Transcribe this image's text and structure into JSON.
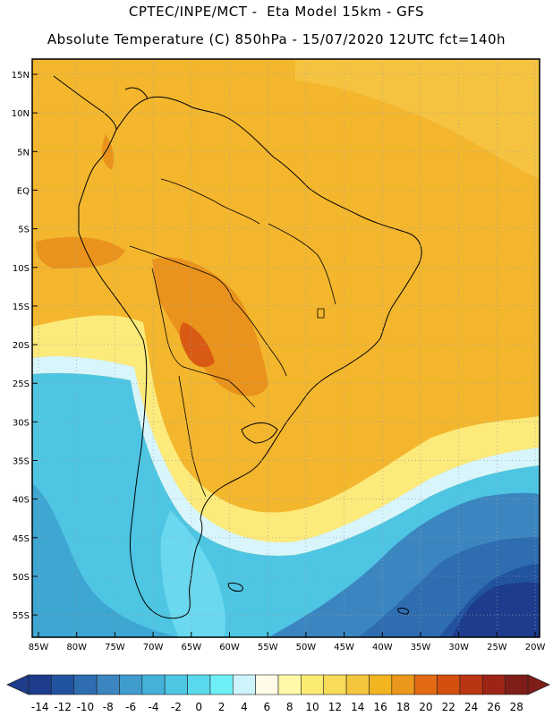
{
  "header": {
    "line1": "CPTEC/INPE/MCT -  Eta Model 15km - GFS",
    "line2": "Absolute Temperature (C) 850hPa - 15/07/2020 12UTC fct=140h"
  },
  "axes": {
    "lat_labels": [
      "15N",
      "10N",
      "5N",
      "EQ",
      "5S",
      "10S",
      "15S",
      "20S",
      "25S",
      "30S",
      "35S",
      "40S",
      "45S",
      "50S",
      "55S"
    ],
    "lon_labels": [
      "85W",
      "80W",
      "75W",
      "70W",
      "65W",
      "60W",
      "55W",
      "50W",
      "45W",
      "40W",
      "35W",
      "30W",
      "25W",
      "20W"
    ]
  },
  "colorbar": {
    "labels": [
      "-14",
      "-12",
      "-10",
      "-8",
      "-6",
      "-4",
      "-2",
      "0",
      "2",
      "4",
      "6",
      "8",
      "10",
      "12",
      "14",
      "16",
      "18",
      "20",
      "22",
      "24",
      "26",
      "28"
    ],
    "colors": [
      "#1d3c8c",
      "#22539f",
      "#2e6db0",
      "#3b86c1",
      "#3f9ccd",
      "#43b1d8",
      "#4ec6e3",
      "#5ad9ec",
      "#6ff0f7",
      "#cdf3fb",
      "#fffbe8",
      "#fff9a8",
      "#fbeb73",
      "#f8db58",
      "#f4c63e",
      "#f2b41f",
      "#ea971b",
      "#e16a12",
      "#d44f0d",
      "#b83612",
      "#9d2517",
      "#7f1d18"
    ]
  },
  "colors": {
    "warm": "#f2b42a",
    "hot": "#ea8f1c",
    "cool": "#45bee0",
    "cold": "#1e3b8e",
    "coast": "#000000"
  }
}
